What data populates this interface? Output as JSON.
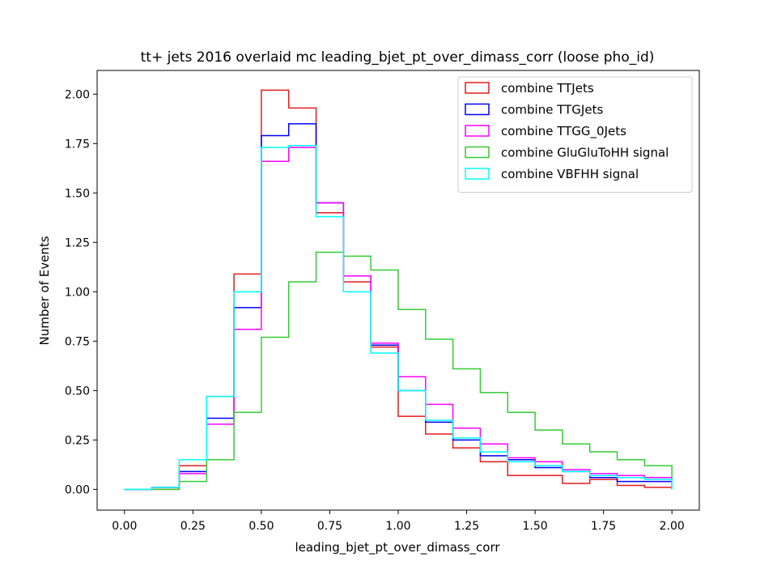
{
  "chart_data": {
    "type": "histogram-step",
    "title": "tt+ jets 2016 overlaid mc leading_bjet_pt_over_dimass_corr (loose pho_id)",
    "xlabel": "leading_bjet_pt_over_dimass_corr",
    "ylabel": "Number of Events",
    "xlim": [
      -0.1,
      2.1
    ],
    "ylim": [
      -0.105,
      2.12
    ],
    "xticks": [
      "0.00",
      "0.25",
      "0.50",
      "0.75",
      "1.00",
      "1.25",
      "1.50",
      "1.75",
      "2.00"
    ],
    "yticks": [
      "0.00",
      "0.25",
      "0.50",
      "0.75",
      "1.00",
      "1.25",
      "1.50",
      "1.75",
      "2.00"
    ],
    "grid": false,
    "legend_position": "top-right",
    "bin_edges": [
      0.0,
      0.1,
      0.2,
      0.3,
      0.4,
      0.5,
      0.6,
      0.7,
      0.8,
      0.9,
      1.0,
      1.1,
      1.2,
      1.3,
      1.4,
      1.5,
      1.6,
      1.7,
      1.8,
      1.9,
      2.0
    ],
    "series": [
      {
        "name": "combine TTJets",
        "color": "#e41a1c",
        "values": [
          0.0,
          0.0,
          0.12,
          0.47,
          1.09,
          2.02,
          1.93,
          1.4,
          1.05,
          0.72,
          0.37,
          0.28,
          0.21,
          0.14,
          0.07,
          0.07,
          0.03,
          0.05,
          0.02,
          0.01
        ]
      },
      {
        "name": "combine TTGJets",
        "color": "#0000ff",
        "values": [
          0.0,
          0.01,
          0.09,
          0.36,
          0.92,
          1.79,
          1.85,
          1.45,
          1.08,
          0.73,
          0.5,
          0.34,
          0.25,
          0.17,
          0.15,
          0.11,
          0.09,
          0.06,
          0.04,
          0.04
        ]
      },
      {
        "name": "combine TTGG_0Jets",
        "color": "#ff00ff",
        "values": [
          0.0,
          0.01,
          0.08,
          0.33,
          0.81,
          1.66,
          1.73,
          1.45,
          1.08,
          0.74,
          0.57,
          0.43,
          0.31,
          0.23,
          0.16,
          0.14,
          0.1,
          0.08,
          0.07,
          0.06
        ]
      },
      {
        "name": "combine GluGluToHH signal",
        "color": "#33cc33",
        "values": [
          0.0,
          0.0,
          0.04,
          0.15,
          0.39,
          0.77,
          1.05,
          1.2,
          1.18,
          1.11,
          0.91,
          0.76,
          0.61,
          0.49,
          0.39,
          0.3,
          0.23,
          0.19,
          0.15,
          0.12
        ]
      },
      {
        "name": "combine VBFHH signal",
        "color": "#00ffff",
        "values": [
          0.0,
          0.01,
          0.15,
          0.47,
          1.0,
          1.73,
          1.74,
          1.38,
          1.0,
          0.69,
          0.5,
          0.35,
          0.26,
          0.19,
          0.14,
          0.12,
          0.09,
          0.07,
          0.06,
          0.05
        ]
      }
    ]
  }
}
